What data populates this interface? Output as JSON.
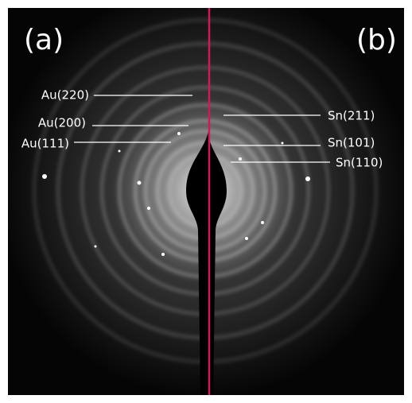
{
  "panels": [
    {
      "label": "(a)"
    },
    {
      "label": "(b)"
    }
  ],
  "left_labels": [
    "Au(220)",
    "Au(200)",
    "Au(111)"
  ],
  "right_labels": [
    "Sn(211)",
    "Sn(101)",
    "Sn(110)"
  ]
}
